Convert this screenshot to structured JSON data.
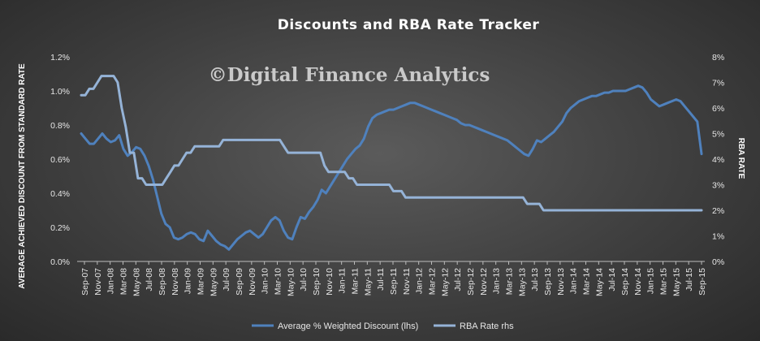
{
  "chart_data": {
    "type": "line",
    "title": "Discounts  and RBA Rate Tracker",
    "watermark": "©Digital Finance Analytics",
    "ylabel_left": "AVERAGE ACHIEVED DISCOUNT FROM STANDARD RATE",
    "ylabel_right": "RBA RATE",
    "y_left_ticks": [
      "0.0%",
      "0.2%",
      "0.4%",
      "0.6%",
      "0.8%",
      "1.0%",
      "1.2%"
    ],
    "y_right_ticks": [
      "0%",
      "1%",
      "2%",
      "3%",
      "4%",
      "5%",
      "6%",
      "7%",
      "8%"
    ],
    "ylim_left": [
      0,
      1.2
    ],
    "ylim_right": [
      0,
      8
    ],
    "x_labels": [
      "Sep-07",
      "Nov-07",
      "Jan-08",
      "Mar-08",
      "May-08",
      "Jul-08",
      "Sep-08",
      "Nov-08",
      "Jan-09",
      "Mar-09",
      "May-09",
      "Jul-09",
      "Sep-09",
      "Nov-09",
      "Jan-10",
      "Mar-10",
      "May-10",
      "Jul-10",
      "Sep-10",
      "Nov-10",
      "Jan-11",
      "Mar-11",
      "May-11",
      "Jul-11",
      "Sep-11",
      "Nov-11",
      "Jan-12",
      "Mar-12",
      "May-12",
      "Jul-12",
      "Sep-12",
      "Nov-12",
      "Jan-13",
      "Mar-13",
      "May-13",
      "Jul-13",
      "Sep-13",
      "Nov-13",
      "Jan-14",
      "Mar-14",
      "May-14",
      "Jul-14",
      "Sep-14",
      "Nov-14",
      "Jan-15",
      "Mar-15",
      "May-15",
      "Jul-15",
      "Sep-15"
    ],
    "grid": false,
    "legend_position": "bottom",
    "colors": {
      "discount": "#4f81bd",
      "rba": "#95b3d7"
    },
    "series": [
      {
        "name": "Average % Weighted Discount (lhs)",
        "axis": "left",
        "color": "#4f81bd",
        "values": [
          0.75,
          0.72,
          0.69,
          0.69,
          0.72,
          0.75,
          0.72,
          0.7,
          0.71,
          0.74,
          0.66,
          0.62,
          0.64,
          0.67,
          0.66,
          0.62,
          0.56,
          0.48,
          0.38,
          0.28,
          0.22,
          0.2,
          0.14,
          0.13,
          0.14,
          0.16,
          0.17,
          0.16,
          0.13,
          0.12,
          0.18,
          0.15,
          0.12,
          0.1,
          0.09,
          0.07,
          0.1,
          0.13,
          0.15,
          0.17,
          0.18,
          0.16,
          0.14,
          0.16,
          0.2,
          0.24,
          0.26,
          0.24,
          0.18,
          0.14,
          0.13,
          0.2,
          0.26,
          0.25,
          0.29,
          0.32,
          0.36,
          0.42,
          0.4,
          0.44,
          0.48,
          0.52,
          0.56,
          0.6,
          0.63,
          0.66,
          0.68,
          0.72,
          0.79,
          0.84,
          0.86,
          0.87,
          0.88,
          0.89,
          0.89,
          0.9,
          0.91,
          0.92,
          0.93,
          0.93,
          0.92,
          0.91,
          0.9,
          0.89,
          0.88,
          0.87,
          0.86,
          0.85,
          0.84,
          0.83,
          0.81,
          0.8,
          0.8,
          0.79,
          0.78,
          0.77,
          0.76,
          0.75,
          0.74,
          0.73,
          0.72,
          0.71,
          0.69,
          0.67,
          0.65,
          0.63,
          0.62,
          0.66,
          0.71,
          0.7,
          0.72,
          0.74,
          0.76,
          0.79,
          0.82,
          0.87,
          0.9,
          0.92,
          0.94,
          0.95,
          0.96,
          0.97,
          0.97,
          0.98,
          0.99,
          0.99,
          1.0,
          1.0,
          1.0,
          1.0,
          1.01,
          1.02,
          1.03,
          1.02,
          0.99,
          0.95,
          0.93,
          0.91,
          0.92,
          0.93,
          0.94,
          0.95,
          0.94,
          0.91,
          0.88,
          0.85,
          0.82,
          0.63
        ]
      },
      {
        "name": "RBA Rate rhs",
        "axis": "right",
        "color": "#95b3d7",
        "values": [
          6.5,
          6.5,
          6.75,
          6.75,
          7.0,
          7.25,
          7.25,
          7.25,
          7.25,
          7.0,
          6.0,
          5.25,
          4.25,
          4.25,
          3.25,
          3.25,
          3.0,
          3.0,
          3.0,
          3.0,
          3.0,
          3.25,
          3.5,
          3.75,
          3.75,
          4.0,
          4.25,
          4.25,
          4.5,
          4.5,
          4.5,
          4.5,
          4.5,
          4.5,
          4.5,
          4.75,
          4.75,
          4.75,
          4.75,
          4.75,
          4.75,
          4.75,
          4.75,
          4.75,
          4.75,
          4.75,
          4.75,
          4.75,
          4.75,
          4.75,
          4.5,
          4.25,
          4.25,
          4.25,
          4.25,
          4.25,
          4.25,
          4.25,
          4.25,
          4.25,
          3.75,
          3.5,
          3.5,
          3.5,
          3.5,
          3.5,
          3.25,
          3.25,
          3.0,
          3.0,
          3.0,
          3.0,
          3.0,
          3.0,
          3.0,
          3.0,
          3.0,
          2.75,
          2.75,
          2.75,
          2.5,
          2.5,
          2.5,
          2.5,
          2.5,
          2.5,
          2.5,
          2.5,
          2.5,
          2.5,
          2.5,
          2.5,
          2.5,
          2.5,
          2.5,
          2.5,
          2.5,
          2.5,
          2.5,
          2.5,
          2.5,
          2.5,
          2.5,
          2.5,
          2.5,
          2.5,
          2.5,
          2.5,
          2.5,
          2.5,
          2.25,
          2.25,
          2.25,
          2.25,
          2.0,
          2.0,
          2.0,
          2.0,
          2.0,
          2.0,
          2.0,
          2.0,
          2.0,
          2.0,
          2.0,
          2.0,
          2.0,
          2.0,
          2.0,
          2.0,
          2.0,
          2.0,
          2.0,
          2.0,
          2.0,
          2.0,
          2.0,
          2.0,
          2.0,
          2.0,
          2.0,
          2.0,
          2.0,
          2.0,
          2.0,
          2.0,
          2.0,
          2.0,
          2.0,
          2.0,
          2.0,
          2.0,
          2.0,
          2.0
        ]
      }
    ]
  }
}
